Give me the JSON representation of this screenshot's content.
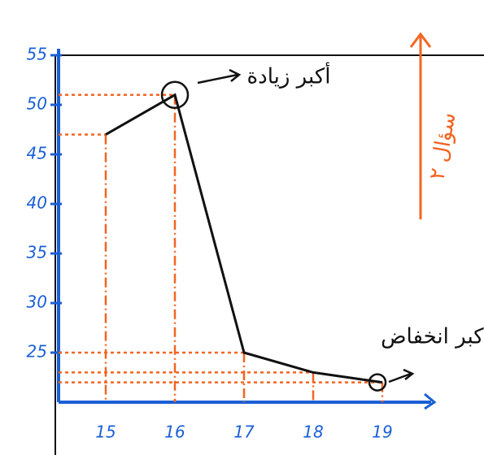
{
  "chart_data": {
    "type": "line",
    "categories": [
      "15",
      "16",
      "17",
      "18",
      "19"
    ],
    "values": [
      47,
      51,
      25,
      23,
      22
    ],
    "color": "#111111",
    "guide_color": "#f26522",
    "axis_color": "#1a5fd6",
    "ylim": [
      20,
      55
    ],
    "yticks": [
      25,
      30,
      35,
      40,
      45,
      50,
      55
    ],
    "annotations": {
      "max_increase": "أكبر زيادة",
      "max_decrease": "أكبر انخفاض",
      "question": "سؤال ٢"
    }
  }
}
